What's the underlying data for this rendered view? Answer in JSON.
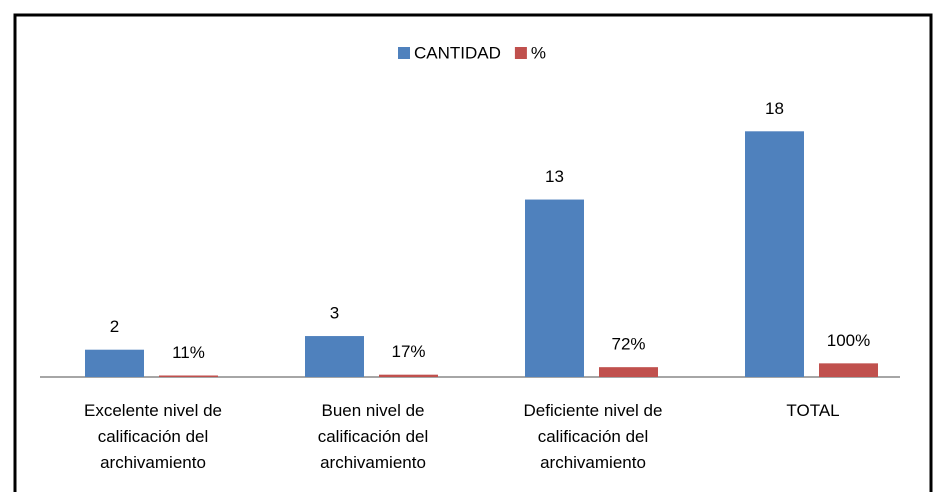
{
  "chart_data": {
    "type": "bar",
    "categories": [
      "Excelente nivel de calificación del archivamiento",
      "Buen nivel de calificación del archivamiento",
      "Deficiente nivel de calificación del archivamiento",
      "TOTAL"
    ],
    "series": [
      {
        "name": "CANTIDAD",
        "color": "#4f81bd",
        "values": [
          2,
          3,
          13,
          18
        ]
      },
      {
        "name": "%",
        "color": "#c0504d",
        "values": [
          0.11,
          0.17,
          0.72,
          1
        ],
        "value_labels": [
          "11%",
          "17%",
          "72%",
          "100%"
        ]
      }
    ],
    "ylim": [
      0,
      20
    ],
    "legend": "top"
  }
}
